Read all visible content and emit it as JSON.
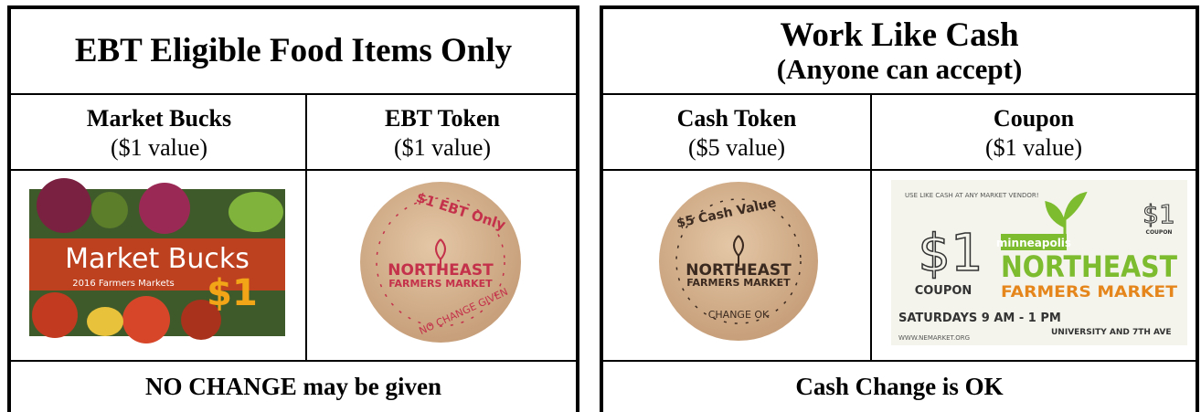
{
  "tables": [
    {
      "title": "EBT Eligible Food Items Only",
      "columns": [
        {
          "name": "Market Bucks",
          "value": "($1 value)",
          "image_text": [
            "Market Bucks",
            "2016 Farmers Markets",
            "$1"
          ]
        },
        {
          "name": "EBT Token",
          "value": "($1 value)",
          "image_text": [
            "$1 EBT Only",
            "NORTHEAST",
            "FARMERS MARKET",
            "NO CHANGE GIVEN"
          ]
        }
      ],
      "footer": "NO CHANGE may be given"
    },
    {
      "title": "Work Like Cash",
      "subtitle": "(Anyone can accept)",
      "columns": [
        {
          "name": "Cash Token",
          "value": "($5 value)",
          "image_text": [
            "$5 Cash Value",
            "NORTHEAST",
            "FARMERS MARKET",
            "CHANGE OK"
          ]
        },
        {
          "name": "Coupon",
          "value": "($1 value)",
          "image_text": [
            "USE LIKE CASH AT ANY MARKET VENDOR!",
            "$1",
            "COUPON",
            "minneapolis",
            "NORTHEAST",
            "FARMERS MARKET",
            "SATURDAYS 9 AM - 1 PM",
            "UNIVERSITY AND 7TH AVE",
            "WWW.NEMARKET.ORG",
            "$1",
            "COUPON"
          ]
        }
      ],
      "footer": "Cash Change is OK"
    }
  ]
}
